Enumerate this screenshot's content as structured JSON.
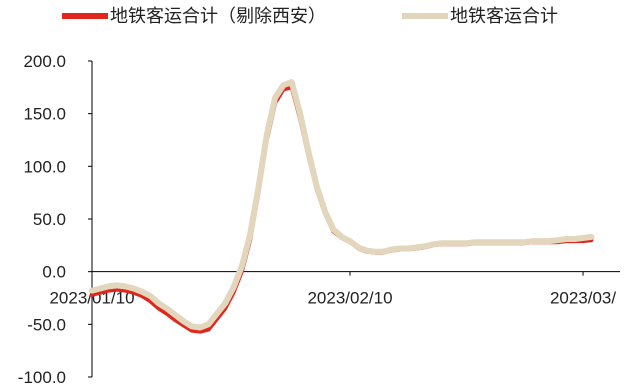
{
  "chart_data": {
    "type": "line",
    "x_type": "date",
    "ylim": [
      -100.0,
      200.0
    ],
    "y_ticks": [
      "200.0",
      "150.0",
      "100.0",
      "50.0",
      "0.0",
      "-50.0",
      "-100.0"
    ],
    "x_ticks": [
      "2023/01/10",
      "2023/02/10",
      "2023/03/"
    ],
    "x_tick_dates": [
      "2023-01-10",
      "2023-02-10",
      "2023-03-10"
    ],
    "legend": {
      "position": "top"
    },
    "series": [
      {
        "name": "地铁客运合计（剔除西安）",
        "color": "#e0261d",
        "points": [
          [
            "2023-01-10",
            -22
          ],
          [
            "2023-01-11",
            -20
          ],
          [
            "2023-01-12",
            -18
          ],
          [
            "2023-01-13",
            -17
          ],
          [
            "2023-01-14",
            -18
          ],
          [
            "2023-01-15",
            -20
          ],
          [
            "2023-01-16",
            -23
          ],
          [
            "2023-01-17",
            -28
          ],
          [
            "2023-01-18",
            -35
          ],
          [
            "2023-01-19",
            -40
          ],
          [
            "2023-01-20",
            -46
          ],
          [
            "2023-01-21",
            -51
          ],
          [
            "2023-01-22",
            -56
          ],
          [
            "2023-01-23",
            -57
          ],
          [
            "2023-01-24",
            -55
          ],
          [
            "2023-01-25",
            -45
          ],
          [
            "2023-01-26",
            -35
          ],
          [
            "2023-01-27",
            -20
          ],
          [
            "2023-01-28",
            0
          ],
          [
            "2023-01-29",
            30
          ],
          [
            "2023-01-30",
            75
          ],
          [
            "2023-01-31",
            125
          ],
          [
            "2023-02-01",
            160
          ],
          [
            "2023-02-02",
            173
          ],
          [
            "2023-02-03",
            175
          ],
          [
            "2023-02-04",
            145
          ],
          [
            "2023-02-05",
            110
          ],
          [
            "2023-02-06",
            78
          ],
          [
            "2023-02-07",
            55
          ],
          [
            "2023-02-08",
            38
          ],
          [
            "2023-02-09",
            32
          ],
          [
            "2023-02-10",
            28
          ],
          [
            "2023-02-11",
            22
          ],
          [
            "2023-02-12",
            19
          ],
          [
            "2023-02-13",
            18
          ],
          [
            "2023-02-14",
            18
          ],
          [
            "2023-02-15",
            20
          ],
          [
            "2023-02-16",
            21
          ],
          [
            "2023-02-17",
            21
          ],
          [
            "2023-02-18",
            22
          ],
          [
            "2023-02-19",
            23
          ],
          [
            "2023-02-20",
            25
          ],
          [
            "2023-02-21",
            26
          ],
          [
            "2023-02-22",
            26
          ],
          [
            "2023-02-23",
            26
          ],
          [
            "2023-02-24",
            26
          ],
          [
            "2023-02-25",
            27
          ],
          [
            "2023-02-26",
            27
          ],
          [
            "2023-02-27",
            27
          ],
          [
            "2023-02-28",
            27
          ],
          [
            "2023-03-01",
            27
          ],
          [
            "2023-03-02",
            27
          ],
          [
            "2023-03-03",
            27
          ],
          [
            "2023-03-04",
            28
          ],
          [
            "2023-03-05",
            28
          ],
          [
            "2023-03-06",
            28
          ],
          [
            "2023-03-07",
            28
          ],
          [
            "2023-03-08",
            29
          ],
          [
            "2023-03-09",
            29
          ],
          [
            "2023-03-10",
            29
          ],
          [
            "2023-03-11",
            30
          ]
        ]
      },
      {
        "name": "地铁客运合计",
        "color": "#e2d6bd",
        "points": [
          [
            "2023-01-10",
            -18
          ],
          [
            "2023-01-11",
            -16
          ],
          [
            "2023-01-12",
            -14
          ],
          [
            "2023-01-13",
            -13
          ],
          [
            "2023-01-14",
            -14
          ],
          [
            "2023-01-15",
            -16
          ],
          [
            "2023-01-16",
            -19
          ],
          [
            "2023-01-17",
            -23
          ],
          [
            "2023-01-18",
            -30
          ],
          [
            "2023-01-19",
            -35
          ],
          [
            "2023-01-20",
            -41
          ],
          [
            "2023-01-21",
            -47
          ],
          [
            "2023-01-22",
            -52
          ],
          [
            "2023-01-23",
            -53
          ],
          [
            "2023-01-24",
            -50
          ],
          [
            "2023-01-25",
            -40
          ],
          [
            "2023-01-26",
            -30
          ],
          [
            "2023-01-27",
            -15
          ],
          [
            "2023-01-28",
            5
          ],
          [
            "2023-01-29",
            35
          ],
          [
            "2023-01-30",
            80
          ],
          [
            "2023-01-31",
            130
          ],
          [
            "2023-02-01",
            165
          ],
          [
            "2023-02-02",
            177
          ],
          [
            "2023-02-03",
            180
          ],
          [
            "2023-02-04",
            150
          ],
          [
            "2023-02-05",
            114
          ],
          [
            "2023-02-06",
            81
          ],
          [
            "2023-02-07",
            57
          ],
          [
            "2023-02-08",
            40
          ],
          [
            "2023-02-09",
            33
          ],
          [
            "2023-02-10",
            29
          ],
          [
            "2023-02-11",
            23
          ],
          [
            "2023-02-12",
            20
          ],
          [
            "2023-02-13",
            19
          ],
          [
            "2023-02-14",
            19
          ],
          [
            "2023-02-15",
            21
          ],
          [
            "2023-02-16",
            22
          ],
          [
            "2023-02-17",
            22
          ],
          [
            "2023-02-18",
            23
          ],
          [
            "2023-02-19",
            24
          ],
          [
            "2023-02-20",
            26
          ],
          [
            "2023-02-21",
            27
          ],
          [
            "2023-02-22",
            27
          ],
          [
            "2023-02-23",
            27
          ],
          [
            "2023-02-24",
            27
          ],
          [
            "2023-02-25",
            28
          ],
          [
            "2023-02-26",
            28
          ],
          [
            "2023-02-27",
            28
          ],
          [
            "2023-02-28",
            28
          ],
          [
            "2023-03-01",
            28
          ],
          [
            "2023-03-02",
            28
          ],
          [
            "2023-03-03",
            28
          ],
          [
            "2023-03-04",
            29
          ],
          [
            "2023-03-05",
            29
          ],
          [
            "2023-03-06",
            29
          ],
          [
            "2023-03-07",
            30
          ],
          [
            "2023-03-08",
            31
          ],
          [
            "2023-03-09",
            31
          ],
          [
            "2023-03-10",
            32
          ],
          [
            "2023-03-11",
            33
          ]
        ]
      }
    ]
  }
}
